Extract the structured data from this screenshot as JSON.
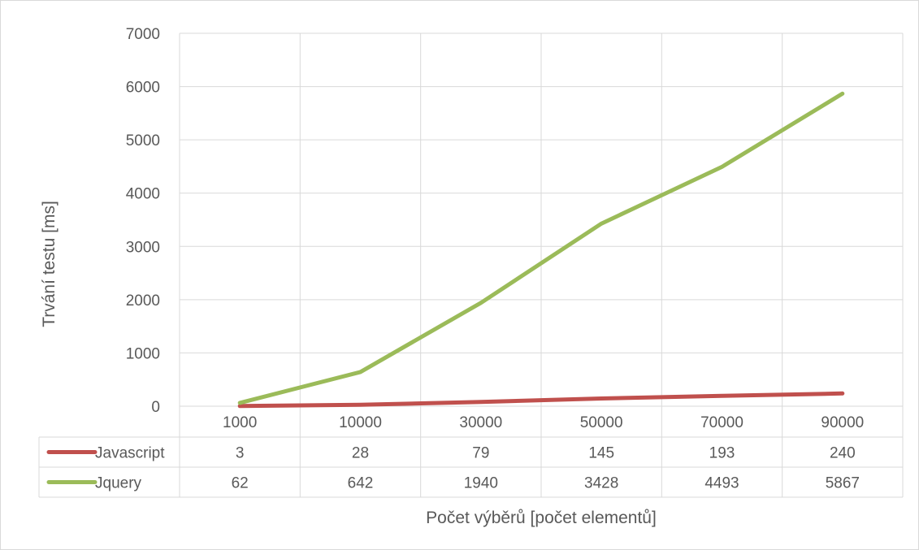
{
  "chart_data": {
    "type": "line",
    "title": "",
    "xlabel": "Počet výběrů [počet elementů]",
    "ylabel": "Trvání testu [ms]",
    "categories": [
      "1000",
      "10000",
      "30000",
      "50000",
      "70000",
      "90000"
    ],
    "ylim": [
      0,
      7000
    ],
    "yticks": [
      0,
      1000,
      2000,
      3000,
      4000,
      5000,
      6000,
      7000
    ],
    "grid": true,
    "legend": "data-table-left",
    "series": [
      {
        "name": "Javascript",
        "color": "#c0504d",
        "values": [
          3,
          28,
          79,
          145,
          193,
          240
        ]
      },
      {
        "name": "Jquery",
        "color": "#9bbb59",
        "values": [
          62,
          642,
          1940,
          3428,
          4493,
          5867
        ]
      }
    ]
  }
}
